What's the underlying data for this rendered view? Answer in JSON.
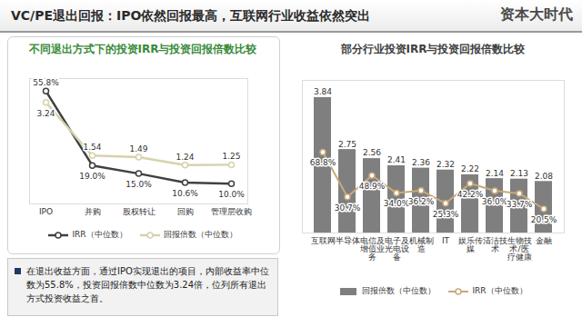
{
  "header": {
    "title": "VC/PE退出回报：IPO依然回报最高，互联网行业收益依然突出",
    "logo": "资本大时代"
  },
  "chart_data": [
    {
      "type": "line",
      "title": "不同退出方式下的投资IRR与投资回报倍数比较",
      "categories": [
        "IPO",
        "并购",
        "股权转让",
        "回购",
        "管理层收购"
      ],
      "series": [
        {
          "name": "IRR（中位数）",
          "color": "#404040",
          "marker": "circle",
          "values": [
            55.8,
            19.0,
            15.0,
            10.6,
            10.0
          ],
          "value_labels": [
            "55.8%",
            "19.0%",
            "15.0%",
            "10.6%",
            "10.0%"
          ]
        },
        {
          "name": "回报倍数（中位数）",
          "color": "#d6d2ad",
          "marker": "circle",
          "axis": "y2",
          "values": [
            3.24,
            1.54,
            1.49,
            1.24,
            1.25
          ]
        }
      ],
      "ylim": [
        0,
        62
      ],
      "yticks": [],
      "y2lim": [
        0,
        4
      ],
      "y2ticks": [],
      "tick_labels": "x",
      "data_labels": true,
      "legend": "bottom"
    },
    {
      "type": "bar",
      "title": "部分行业投资IRR与投资回报倍数比较",
      "categories": [
        "互联网",
        "半导体",
        "电信及增值业务",
        "电子及光电设备",
        "机械制造",
        "IT",
        "娱乐传媒",
        "清洁技术",
        "生物技术/医疗健康",
        "金融"
      ],
      "series": [
        {
          "name": "回报倍数（中位数）",
          "type": "bar",
          "color": "#7f7f7f",
          "values": [
            3.84,
            2.75,
            2.56,
            2.41,
            2.36,
            2.32,
            2.22,
            2.14,
            2.13,
            2.08
          ]
        },
        {
          "name": "IRR（中位数）",
          "type": "line",
          "color": "#c8a97a",
          "marker": "circle",
          "axis": "y2",
          "values": [
            68.8,
            30.7,
            48.9,
            34.0,
            36.2,
            25.3,
            42.2,
            36.0,
            33.7,
            20.5
          ],
          "value_labels": [
            "68.8%",
            "30.7%",
            "48.9%",
            "34.0%",
            "36.2%",
            "25.3%",
            "42.2%",
            "36.0%",
            "33.7%",
            "20.5%"
          ]
        }
      ],
      "ylim": [
        1,
        4.2
      ],
      "yticks": [],
      "y2lim": [
        0,
        130
      ],
      "y2ticks": [],
      "tick_labels": "x",
      "data_labels": true,
      "legend": "bottom"
    }
  ],
  "text_box": {
    "text": "在退出收益方面，通过IPO实现退出的项目，内部收益率中位数为55.8%，投资回报倍数中位数为3.24倍，位列所有退出方式投资收益之首。"
  }
}
